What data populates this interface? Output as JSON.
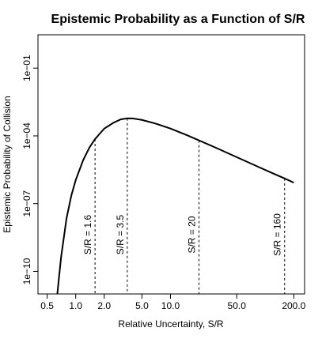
{
  "chart_data": {
    "type": "line",
    "title": "Epistemic Probability as a Function of S/R",
    "xlabel": "Relative Uncertainty, S/R",
    "ylabel": "Epistemic Probability of Collision",
    "x_scale": "log",
    "y_scale": "log",
    "xlim": [
      0.4,
      260
    ],
    "ylim": [
      1e-11,
      3
    ],
    "xticks": [
      0.5,
      1.0,
      2.0,
      5.0,
      10.0,
      50.0,
      200.0
    ],
    "xtick_labels": [
      "0.5",
      "1.0",
      "2.0",
      "5.0",
      "10.0",
      "50.0",
      "200.0"
    ],
    "yticks": [
      1e-10,
      1e-07,
      0.0001,
      0.1
    ],
    "ytick_labels": [
      "1e−10",
      "1e−07",
      "1e−04",
      "1e−01"
    ],
    "grid": false,
    "legend": "none",
    "color": "#000000",
    "series": [
      {
        "x": [
          0.64,
          0.7,
          0.8,
          0.9,
          1.0,
          1.2,
          1.4,
          1.6,
          2.0,
          2.5,
          3.0,
          3.5,
          4.0,
          5.0,
          7.0,
          10.0,
          15.0,
          20.0,
          30.0,
          50.0,
          80.0,
          120.0,
          160.0,
          200.0
        ],
        "y": [
          1e-11,
          4e-10,
          2.2e-08,
          2.3e-07,
          1.1e-06,
          8.5e-06,
          3.1e-05,
          7.2e-05,
          0.00021,
          0.00038,
          0.00054,
          0.0006,
          0.00059,
          0.00051,
          0.00035,
          0.00021,
          0.000106,
          6.3e-05,
          3e-05,
          1.14e-05,
          4.7e-06,
          2.2e-06,
          1.3e-06,
          8.5e-07
        ]
      }
    ],
    "annotations": [
      {
        "x": 1.6,
        "label": "S/R = 1.6"
      },
      {
        "x": 3.5,
        "label": "S/R = 3.5"
      },
      {
        "x": 20,
        "label": "S/R = 20"
      },
      {
        "x": 160,
        "label": "S/R = 160"
      }
    ]
  }
}
